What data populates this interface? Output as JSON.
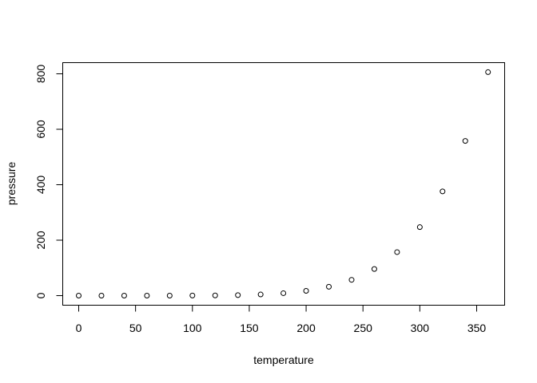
{
  "chart_data": {
    "type": "scatter",
    "title": "",
    "xlabel": "temperature",
    "ylabel": "pressure",
    "x": [
      0,
      20,
      40,
      60,
      80,
      100,
      120,
      140,
      160,
      180,
      200,
      220,
      240,
      260,
      280,
      300,
      320,
      340,
      360
    ],
    "y": [
      0.0002,
      0.0012,
      0.006,
      0.03,
      0.09,
      0.27,
      0.75,
      1.85,
      4.2,
      8.8,
      17.3,
      32.1,
      57,
      96,
      157,
      247,
      376,
      558,
      806
    ],
    "xticks": [
      0,
      50,
      100,
      150,
      200,
      250,
      300,
      350
    ],
    "yticks": [
      0,
      200,
      400,
      600,
      800
    ],
    "grid": false,
    "marker": "open-circle",
    "color": "#000000"
  }
}
